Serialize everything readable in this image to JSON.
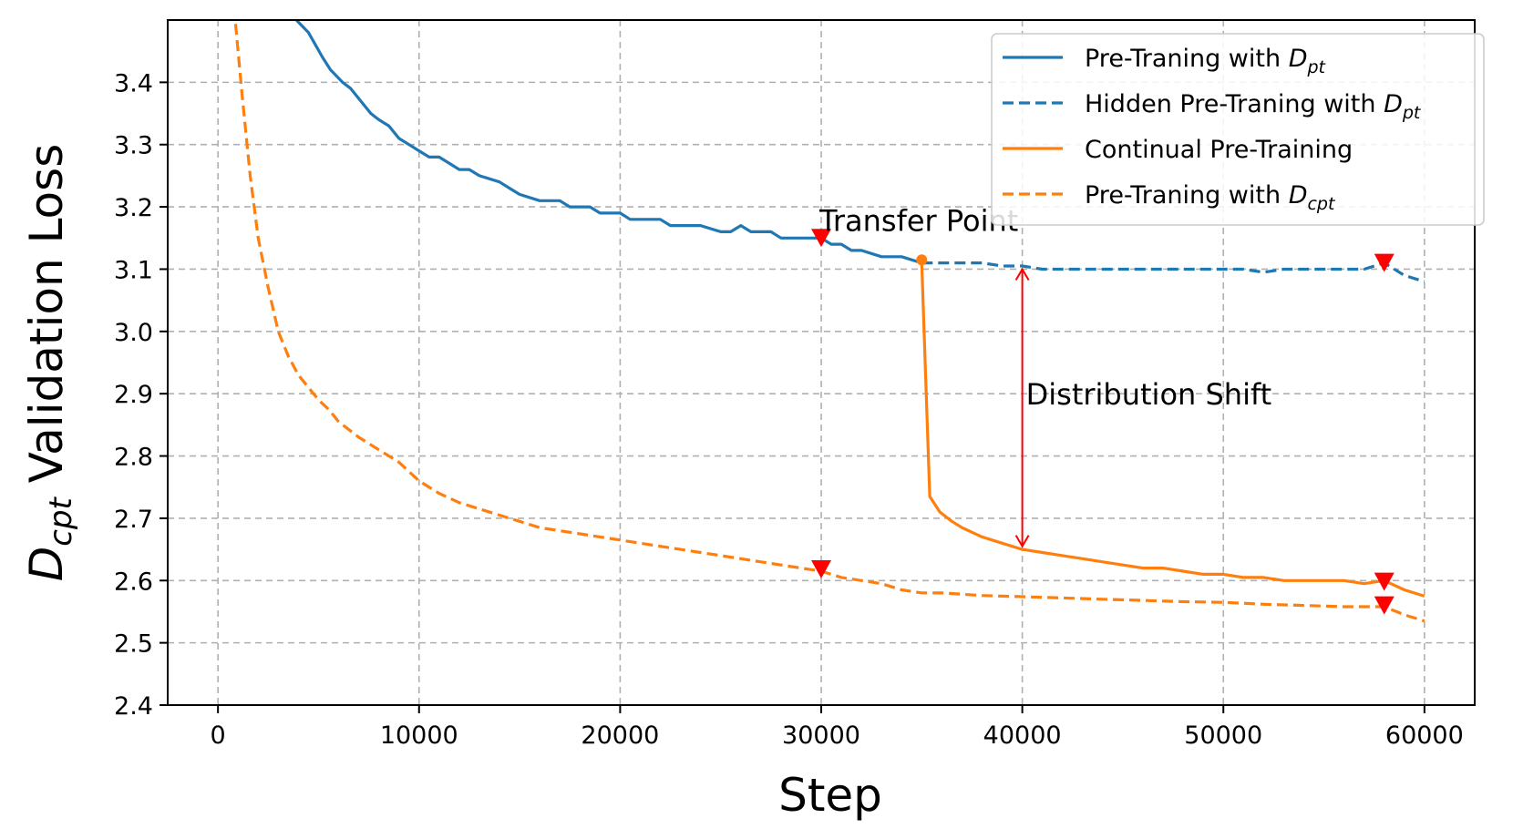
{
  "chart_data": {
    "type": "line",
    "xlabel": "Step",
    "ylabel": {
      "main": "D",
      "sub": "cpt",
      "rest": " Validation Loss"
    },
    "xlim": [
      -2500,
      62500
    ],
    "ylim": [
      2.4,
      3.5
    ],
    "xticks": [
      0,
      10000,
      20000,
      30000,
      40000,
      50000,
      60000
    ],
    "yticks": [
      2.4,
      2.5,
      2.6,
      2.7,
      2.8,
      2.9,
      3.0,
      3.1,
      3.2,
      3.3,
      3.4
    ],
    "xtick_labels": [
      "0",
      "10000",
      "20000",
      "30000",
      "40000",
      "50000",
      "60000"
    ],
    "ytick_labels": [
      "2.4",
      "2.5",
      "2.6",
      "2.7",
      "2.8",
      "2.9",
      "3.0",
      "3.1",
      "3.2",
      "3.3",
      "3.4"
    ],
    "grid": true,
    "legend_position": "top-right",
    "colors": {
      "blue": "#1f77b4",
      "orange": "#ff7f0e",
      "marker": "#ff0000"
    },
    "series": [
      {
        "name": "Pre-Traning with ",
        "name_math": "D",
        "name_sub": "pt",
        "color": "#1f77b4",
        "dash": false,
        "x": [
          3600,
          4500,
          5200,
          5600,
          6200,
          6600,
          7100,
          7600,
          8000,
          8500,
          9000,
          9500,
          10000,
          10500,
          11000,
          11500,
          12000,
          12500,
          13000,
          14000,
          14500,
          15000,
          16000,
          16500,
          17000,
          17500,
          18000,
          18500,
          19000,
          20000,
          20500,
          21000,
          22000,
          22500,
          23000,
          23500,
          24000,
          25000,
          25500,
          26000,
          26500,
          27000,
          27500,
          28000,
          29000,
          30000,
          30500,
          31000,
          31500,
          32000,
          33000,
          34000,
          35000
        ],
        "y": [
          3.51,
          3.48,
          3.44,
          3.42,
          3.4,
          3.39,
          3.37,
          3.35,
          3.34,
          3.33,
          3.31,
          3.3,
          3.29,
          3.28,
          3.28,
          3.27,
          3.26,
          3.26,
          3.25,
          3.24,
          3.23,
          3.22,
          3.21,
          3.21,
          3.21,
          3.2,
          3.2,
          3.2,
          3.19,
          3.19,
          3.18,
          3.18,
          3.18,
          3.17,
          3.17,
          3.17,
          3.17,
          3.16,
          3.16,
          3.17,
          3.16,
          3.16,
          3.16,
          3.15,
          3.15,
          3.15,
          3.14,
          3.14,
          3.13,
          3.13,
          3.12,
          3.12,
          3.11
        ]
      },
      {
        "name": "Hidden Pre-Traning with ",
        "name_math": "D",
        "name_sub": "pt",
        "color": "#1f77b4",
        "dash": true,
        "x": [
          35000,
          36000,
          37000,
          38000,
          39000,
          40000,
          41000,
          42000,
          43000,
          44000,
          45000,
          46000,
          47000,
          48000,
          49000,
          50000,
          51000,
          52000,
          53000,
          54000,
          55000,
          56000,
          57000,
          58000,
          59000,
          60000
        ],
        "y": [
          3.11,
          3.11,
          3.11,
          3.11,
          3.105,
          3.105,
          3.1,
          3.1,
          3.1,
          3.1,
          3.1,
          3.1,
          3.1,
          3.1,
          3.1,
          3.1,
          3.1,
          3.095,
          3.1,
          3.1,
          3.1,
          3.1,
          3.1,
          3.11,
          3.09,
          3.08
        ]
      },
      {
        "name": "Continual Pre-Training",
        "name_math": "",
        "name_sub": "",
        "color": "#ff7f0e",
        "dash": false,
        "x": [
          35000,
          35400,
          35900,
          36500,
          37000,
          38000,
          39000,
          40000,
          41000,
          42000,
          43000,
          44000,
          45000,
          46000,
          47000,
          48000,
          49000,
          50000,
          51000,
          52000,
          53000,
          54000,
          55000,
          56000,
          57000,
          58000,
          59000,
          60000
        ],
        "y": [
          3.11,
          2.735,
          2.71,
          2.695,
          2.685,
          2.67,
          2.66,
          2.65,
          2.645,
          2.64,
          2.635,
          2.63,
          2.625,
          2.62,
          2.62,
          2.615,
          2.61,
          2.61,
          2.605,
          2.605,
          2.6,
          2.6,
          2.6,
          2.6,
          2.595,
          2.6,
          2.585,
          2.575
        ]
      },
      {
        "name": "Pre-Traning with ",
        "name_math": "D",
        "name_sub": "cpt",
        "color": "#ff7f0e",
        "dash": true,
        "x": [
          800,
          1200,
          1600,
          2000,
          2500,
          3000,
          3500,
          4000,
          4500,
          5000,
          5500,
          6000,
          7000,
          8000,
          9000,
          10000,
          11000,
          12000,
          13000,
          14000,
          15000,
          16000,
          17000,
          18000,
          19000,
          20000,
          21000,
          22000,
          23000,
          24000,
          25000,
          26000,
          27000,
          28000,
          29000,
          30000,
          31000,
          32000,
          33000,
          34000,
          35000,
          36000,
          37000,
          38000,
          39000,
          40000,
          42000,
          44000,
          46000,
          48000,
          50000,
          52000,
          54000,
          56000,
          58000,
          59000,
          60000
        ],
        "y": [
          3.52,
          3.38,
          3.25,
          3.15,
          3.07,
          3.0,
          2.96,
          2.93,
          2.91,
          2.89,
          2.875,
          2.855,
          2.83,
          2.81,
          2.79,
          2.76,
          2.74,
          2.725,
          2.715,
          2.705,
          2.695,
          2.685,
          2.68,
          2.675,
          2.67,
          2.665,
          2.66,
          2.655,
          2.65,
          2.645,
          2.64,
          2.635,
          2.63,
          2.625,
          2.62,
          2.615,
          2.605,
          2.6,
          2.595,
          2.585,
          2.58,
          2.58,
          2.578,
          2.576,
          2.575,
          2.574,
          2.572,
          2.57,
          2.568,
          2.566,
          2.565,
          2.562,
          2.56,
          2.558,
          2.558,
          2.545,
          2.535
        ]
      }
    ],
    "markers": [
      {
        "x": 30000,
        "y": 3.15
      },
      {
        "x": 58000,
        "y": 3.11
      },
      {
        "x": 30000,
        "y": 2.618
      },
      {
        "x": 58000,
        "y": 2.598
      },
      {
        "x": 58000,
        "y": 2.56
      }
    ],
    "transfer_point": {
      "x": 35000,
      "y": 3.115
    },
    "annotations": {
      "transfer": "Transfer Point",
      "shift": "Distribution Shift",
      "shift_arrow": {
        "x": 40000,
        "y_top": 3.1,
        "y_bottom": 2.655
      }
    }
  }
}
